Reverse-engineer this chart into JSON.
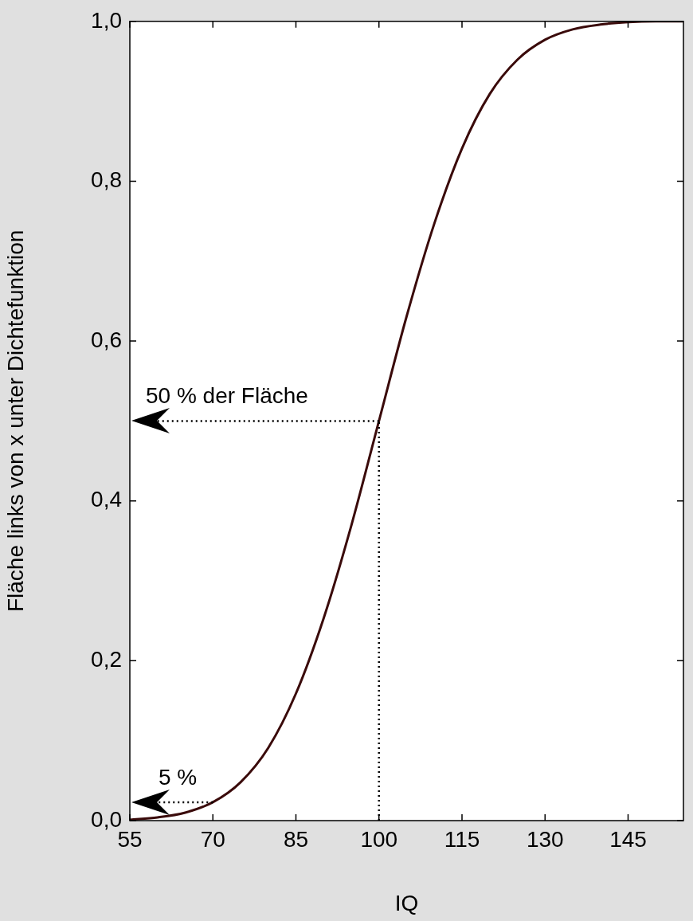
{
  "chart_data": {
    "type": "line",
    "xlabel": "IQ",
    "ylabel": "Fläche links von x unter Dichtefunktion",
    "x": [
      55,
      60,
      65,
      70,
      75,
      80,
      85,
      90,
      95,
      100,
      105,
      110,
      115,
      120,
      125,
      130,
      135,
      140,
      145,
      150,
      155
    ],
    "series": [
      {
        "color": "#3a0a0a",
        "values": [
          0.001,
          0.004,
          0.01,
          0.023,
          0.048,
          0.091,
          0.159,
          0.253,
          0.369,
          0.5,
          0.631,
          0.747,
          0.841,
          0.909,
          0.952,
          0.977,
          0.99,
          0.996,
          0.999,
          1.0,
          1.0
        ]
      }
    ],
    "xlim": [
      55,
      155
    ],
    "xticks": [
      55,
      70,
      85,
      100,
      115,
      130,
      145
    ],
    "ylim": [
      0,
      1
    ],
    "yticks": [
      {
        "value": 0,
        "label": "0,0"
      },
      {
        "value": 0.2,
        "label": "0,2"
      },
      {
        "value": 0.4,
        "label": "0,4"
      },
      {
        "value": 0.6,
        "label": "0,6"
      },
      {
        "value": 0.8,
        "label": "0,8"
      },
      {
        "value": 1,
        "label": "1,0"
      }
    ],
    "annotations": [
      "50 % der Fläche",
      "5 %"
    ],
    "ref_lines": [
      {
        "axis": "y",
        "value": 0.5,
        "line_style": "dotted",
        "color": "#000000"
      },
      {
        "axis": "x",
        "value": 100,
        "line_style": "dotted",
        "color": "#000000"
      },
      {
        "axis": "y",
        "value": 0.023,
        "line_style": "dotted",
        "color": "#000000"
      }
    ],
    "grid": false,
    "legend": false,
    "marker": "none",
    "line_style": "solid"
  }
}
